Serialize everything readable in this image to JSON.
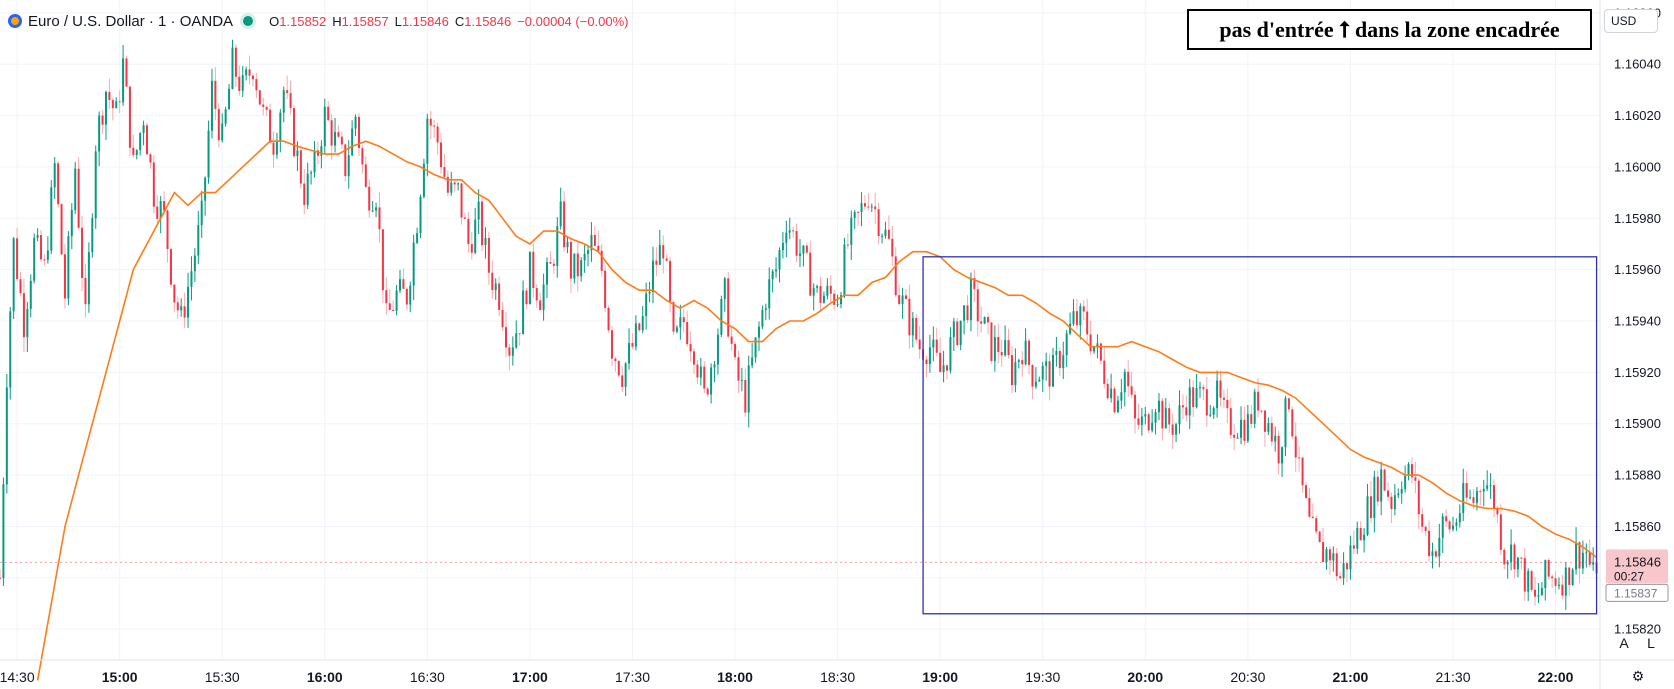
{
  "header": {
    "symbol": "Euro / U.S. Dollar · 1 · OANDA",
    "o_label": "O",
    "o_value": "1.15852",
    "h_label": "H",
    "h_value": "1.15857",
    "l_label": "L",
    "l_value": "1.15846",
    "c_label": "C",
    "c_value": "1.15846",
    "change": "−0.00004 (−0.00%)"
  },
  "annotation": {
    "text": "pas d'entrée ⭡ dans la zone encadrée"
  },
  "currency_button": {
    "label": "USD"
  },
  "price_badge": {
    "price": "1.15846",
    "countdown": "00:27"
  },
  "extra_badge": {
    "price": "1.15837"
  },
  "scale_buttons": {
    "auto": "A",
    "log": "L"
  },
  "icons": {
    "settings": "gear-icon",
    "symbol_logo": "currency-flag-icon",
    "market_status": "market-open-dot-icon"
  },
  "colors": {
    "up": "#089981",
    "down": "#f23645",
    "ma": "#ff7b18",
    "box": "#2b30b5",
    "wick_down": "#f7a9ae",
    "grid": "#f0f3fa"
  },
  "chart_data": {
    "type": "candlestick",
    "symbol": "EURUSD",
    "interval": "1 minute",
    "x_ticks": [
      "14:30",
      "15:00",
      "15:30",
      "16:00",
      "16:30",
      "17:00",
      "17:30",
      "18:00",
      "18:30",
      "19:00",
      "19:30",
      "20:00",
      "20:30",
      "21:00",
      "21:30",
      "22:00"
    ],
    "x_tick_bold": [
      false,
      true,
      false,
      true,
      false,
      true,
      false,
      true,
      false,
      true,
      false,
      true,
      false,
      true,
      false,
      true
    ],
    "y_ticks": [
      "1.16060",
      "1.16040",
      "1.16020",
      "1.16000",
      "1.15980",
      "1.15960",
      "1.15940",
      "1.15920",
      "1.15900",
      "1.15880",
      "1.15860",
      "1.15840",
      "1.15820"
    ],
    "ylim": [
      1.15808,
      1.16065
    ],
    "time_range": [
      "14:25",
      "22:13"
    ],
    "grid": true,
    "price_path": [
      [
        "14:25",
        1.1584
      ],
      [
        "14:27",
        1.1592
      ],
      [
        "14:29",
        1.1597
      ],
      [
        "14:32",
        1.1594
      ],
      [
        "14:35",
        1.1597
      ],
      [
        "14:38",
        1.1596
      ],
      [
        "14:41",
        1.16
      ],
      [
        "14:44",
        1.1595
      ],
      [
        "14:47",
        1.16
      ],
      [
        "14:50",
        1.1594
      ],
      [
        "14:53",
        1.1601
      ],
      [
        "14:56",
        1.1603
      ],
      [
        "14:59",
        1.1602
      ],
      [
        "15:01",
        1.1604
      ],
      [
        "15:04",
        1.16
      ],
      [
        "15:07",
        1.1602
      ],
      [
        "15:10",
        1.1599
      ],
      [
        "15:13",
        1.1598
      ],
      [
        "15:16",
        1.1595
      ],
      [
        "15:18",
        1.1594
      ],
      [
        "15:21",
        1.1596
      ],
      [
        "15:24",
        1.1598
      ],
      [
        "15:27",
        1.1603
      ],
      [
        "15:30",
        1.1601
      ],
      [
        "15:33",
        1.1604
      ],
      [
        "15:36",
        1.1603
      ],
      [
        "15:39",
        1.1604
      ],
      [
        "15:42",
        1.1602
      ],
      [
        "15:45",
        1.1601
      ],
      [
        "15:48",
        1.1603
      ],
      [
        "15:51",
        1.1601
      ],
      [
        "15:54",
        1.1599
      ],
      [
        "15:57",
        1.16
      ],
      [
        "16:00",
        1.1602
      ],
      [
        "16:03",
        1.1601
      ],
      [
        "16:06",
        1.16
      ],
      [
        "16:09",
        1.1602
      ],
      [
        "16:12",
        1.1599
      ],
      [
        "16:15",
        1.1599
      ],
      [
        "16:18",
        1.1594
      ],
      [
        "16:21",
        1.1595
      ],
      [
        "16:24",
        1.1595
      ],
      [
        "16:27",
        1.1598
      ],
      [
        "16:30",
        1.1602
      ],
      [
        "16:33",
        1.1601
      ],
      [
        "16:36",
        1.1599
      ],
      [
        "16:39",
        1.1599
      ],
      [
        "16:42",
        1.1597
      ],
      [
        "16:45",
        1.1598
      ],
      [
        "16:48",
        1.1596
      ],
      [
        "16:51",
        1.1595
      ],
      [
        "16:54",
        1.1593
      ],
      [
        "16:57",
        1.1594
      ],
      [
        "17:00",
        1.1596
      ],
      [
        "17:03",
        1.1595
      ],
      [
        "17:06",
        1.1596
      ],
      [
        "17:09",
        1.1598
      ],
      [
        "17:12",
        1.1596
      ],
      [
        "17:15",
        1.1596
      ],
      [
        "17:18",
        1.1597
      ],
      [
        "17:21",
        1.1596
      ],
      [
        "17:24",
        1.1593
      ],
      [
        "17:27",
        1.1592
      ],
      [
        "17:30",
        1.1593
      ],
      [
        "17:33",
        1.1594
      ],
      [
        "17:36",
        1.1596
      ],
      [
        "17:39",
        1.1597
      ],
      [
        "17:42",
        1.1593
      ],
      [
        "17:45",
        1.1594
      ],
      [
        "17:48",
        1.1593
      ],
      [
        "17:51",
        1.1591
      ],
      [
        "17:54",
        1.1593
      ],
      [
        "17:57",
        1.1595
      ],
      [
        "18:00",
        1.1592
      ],
      [
        "18:03",
        1.1591
      ],
      [
        "18:06",
        1.1593
      ],
      [
        "18:09",
        1.1595
      ],
      [
        "18:12",
        1.1596
      ],
      [
        "18:15",
        1.1598
      ],
      [
        "18:18",
        1.1597
      ],
      [
        "18:21",
        1.1596
      ],
      [
        "18:24",
        1.1595
      ],
      [
        "18:27",
        1.1595
      ],
      [
        "18:30",
        1.1595
      ],
      [
        "18:33",
        1.1597
      ],
      [
        "18:36",
        1.1598
      ],
      [
        "18:39",
        1.1599
      ],
      [
        "18:42",
        1.1598
      ],
      [
        "18:45",
        1.1597
      ],
      [
        "18:48",
        1.1595
      ],
      [
        "18:51",
        1.1594
      ],
      [
        "18:54",
        1.1593
      ],
      [
        "18:57",
        1.1593
      ],
      [
        "19:00",
        1.1592
      ],
      [
        "19:03",
        1.1593
      ],
      [
        "19:06",
        1.1594
      ],
      [
        "19:09",
        1.1595
      ],
      [
        "19:12",
        1.1594
      ],
      [
        "19:15",
        1.1593
      ],
      [
        "19:18",
        1.1593
      ],
      [
        "19:21",
        1.1592
      ],
      [
        "19:24",
        1.1593
      ],
      [
        "19:27",
        1.1592
      ],
      [
        "19:30",
        1.1592
      ],
      [
        "19:33",
        1.1592
      ],
      [
        "19:36",
        1.1593
      ],
      [
        "19:39",
        1.1594
      ],
      [
        "19:42",
        1.1594
      ],
      [
        "19:45",
        1.1593
      ],
      [
        "19:48",
        1.1592
      ],
      [
        "19:51",
        1.1591
      ],
      [
        "19:54",
        1.1592
      ],
      [
        "19:57",
        1.159
      ],
      [
        "20:00",
        1.159
      ],
      [
        "20:03",
        1.1591
      ],
      [
        "20:06",
        1.159
      ],
      [
        "20:09",
        1.159
      ],
      [
        "20:12",
        1.1591
      ],
      [
        "20:15",
        1.1591
      ],
      [
        "20:18",
        1.1591
      ],
      [
        "20:21",
        1.1591
      ],
      [
        "20:24",
        1.159
      ],
      [
        "20:27",
        1.159
      ],
      [
        "20:30",
        1.159
      ],
      [
        "20:33",
        1.1591
      ],
      [
        "20:36",
        1.159
      ],
      [
        "20:39",
        1.1589
      ],
      [
        "20:42",
        1.1591
      ],
      [
        "20:45",
        1.1588
      ],
      [
        "20:48",
        1.1586
      ],
      [
        "20:51",
        1.1585
      ],
      [
        "20:54",
        1.1585
      ],
      [
        "20:57",
        1.1584
      ],
      [
        "21:00",
        1.1585
      ],
      [
        "21:03",
        1.1586
      ],
      [
        "21:06",
        1.1587
      ],
      [
        "21:09",
        1.1588
      ],
      [
        "21:12",
        1.1587
      ],
      [
        "21:15",
        1.1588
      ],
      [
        "21:18",
        1.1588
      ],
      [
        "21:21",
        1.1586
      ],
      [
        "21:24",
        1.1585
      ],
      [
        "21:27",
        1.1586
      ],
      [
        "21:30",
        1.1586
      ],
      [
        "21:33",
        1.1587
      ],
      [
        "21:36",
        1.1587
      ],
      [
        "21:39",
        1.1588
      ],
      [
        "21:42",
        1.1587
      ],
      [
        "21:45",
        1.1585
      ],
      [
        "21:48",
        1.1585
      ],
      [
        "21:51",
        1.1584
      ],
      [
        "21:54",
        1.1583
      ],
      [
        "21:57",
        1.1584
      ],
      [
        "22:00",
        1.1584
      ],
      [
        "22:03",
        1.1584
      ],
      [
        "22:06",
        1.1585
      ],
      [
        "22:09",
        1.1585
      ],
      [
        "22:11",
        1.1584
      ],
      [
        "22:12",
        1.15846
      ]
    ],
    "moving_average": [
      [
        "14:36",
        1.158
      ],
      [
        "14:40",
        1.1583
      ],
      [
        "14:44",
        1.1586
      ],
      [
        "14:48",
        1.1588
      ],
      [
        "14:52",
        1.159
      ],
      [
        "14:56",
        1.1592
      ],
      [
        "15:00",
        1.1594
      ],
      [
        "15:04",
        1.1596
      ],
      [
        "15:08",
        1.1597
      ],
      [
        "15:12",
        1.1598
      ],
      [
        "15:16",
        1.1599
      ],
      [
        "15:20",
        1.15985
      ],
      [
        "15:24",
        1.1599
      ],
      [
        "15:28",
        1.1599
      ],
      [
        "15:32",
        1.15995
      ],
      [
        "15:36",
        1.16
      ],
      [
        "15:40",
        1.16005
      ],
      [
        "15:44",
        1.1601
      ],
      [
        "15:48",
        1.1601
      ],
      [
        "15:52",
        1.16008
      ],
      [
        "16:00",
        1.16005
      ],
      [
        "16:04",
        1.16005
      ],
      [
        "16:08",
        1.16008
      ],
      [
        "16:12",
        1.1601
      ],
      [
        "16:16",
        1.16008
      ],
      [
        "16:20",
        1.16005
      ],
      [
        "16:24",
        1.16002
      ],
      [
        "16:28",
        1.16
      ],
      [
        "16:32",
        1.15997
      ],
      [
        "16:36",
        1.15995
      ],
      [
        "16:40",
        1.15995
      ],
      [
        "16:44",
        1.1599
      ],
      [
        "16:48",
        1.15987
      ],
      [
        "16:52",
        1.1598
      ],
      [
        "16:56",
        1.15973
      ],
      [
        "17:00",
        1.1597
      ],
      [
        "17:04",
        1.15975
      ],
      [
        "17:08",
        1.15975
      ],
      [
        "17:12",
        1.15972
      ],
      [
        "17:16",
        1.1597
      ],
      [
        "17:20",
        1.15967
      ],
      [
        "17:24",
        1.1596
      ],
      [
        "17:28",
        1.15955
      ],
      [
        "17:32",
        1.15952
      ],
      [
        "17:36",
        1.15952
      ],
      [
        "17:40",
        1.15948
      ],
      [
        "17:44",
        1.15945
      ],
      [
        "17:48",
        1.15948
      ],
      [
        "17:52",
        1.15945
      ],
      [
        "17:56",
        1.1594
      ],
      [
        "18:00",
        1.15937
      ],
      [
        "18:04",
        1.15932
      ],
      [
        "18:08",
        1.15932
      ],
      [
        "18:12",
        1.15937
      ],
      [
        "18:16",
        1.1594
      ],
      [
        "18:20",
        1.1594
      ],
      [
        "18:24",
        1.15943
      ],
      [
        "18:28",
        1.15947
      ],
      [
        "18:32",
        1.1595
      ],
      [
        "18:36",
        1.1595
      ],
      [
        "18:40",
        1.15955
      ],
      [
        "18:44",
        1.15957
      ],
      [
        "18:48",
        1.15963
      ],
      [
        "18:52",
        1.15967
      ],
      [
        "18:56",
        1.15967
      ],
      [
        "19:00",
        1.15965
      ],
      [
        "19:04",
        1.1596
      ],
      [
        "19:08",
        1.15957
      ],
      [
        "19:12",
        1.15955
      ],
      [
        "19:16",
        1.15953
      ],
      [
        "19:20",
        1.1595
      ],
      [
        "19:24",
        1.1595
      ],
      [
        "19:28",
        1.15947
      ],
      [
        "19:32",
        1.15943
      ],
      [
        "19:36",
        1.1594
      ],
      [
        "19:40",
        1.15935
      ],
      [
        "19:44",
        1.1593
      ],
      [
        "19:48",
        1.1593
      ],
      [
        "19:52",
        1.1593
      ],
      [
        "19:56",
        1.15932
      ],
      [
        "20:00",
        1.1593
      ],
      [
        "20:04",
        1.15928
      ],
      [
        "20:08",
        1.15925
      ],
      [
        "20:12",
        1.15922
      ],
      [
        "20:16",
        1.1592
      ],
      [
        "20:20",
        1.1592
      ],
      [
        "20:24",
        1.1592
      ],
      [
        "20:28",
        1.15918
      ],
      [
        "20:32",
        1.15916
      ],
      [
        "20:36",
        1.15915
      ],
      [
        "20:40",
        1.15913
      ],
      [
        "20:44",
        1.1591
      ],
      [
        "20:48",
        1.15905
      ],
      [
        "20:52",
        1.159
      ],
      [
        "20:56",
        1.15895
      ],
      [
        "21:00",
        1.1589
      ],
      [
        "21:04",
        1.15887
      ],
      [
        "21:08",
        1.15885
      ],
      [
        "21:12",
        1.15883
      ],
      [
        "21:16",
        1.1588
      ],
      [
        "21:20",
        1.1588
      ],
      [
        "21:24",
        1.15877
      ],
      [
        "21:28",
        1.15873
      ],
      [
        "21:32",
        1.1587
      ],
      [
        "21:36",
        1.15868
      ],
      [
        "21:40",
        1.15867
      ],
      [
        "21:44",
        1.15867
      ],
      [
        "21:48",
        1.15866
      ],
      [
        "21:52",
        1.15864
      ],
      [
        "21:56",
        1.1586
      ],
      [
        "22:00",
        1.15857
      ],
      [
        "22:04",
        1.15855
      ],
      [
        "22:08",
        1.15852
      ],
      [
        "22:12",
        1.15848
      ]
    ],
    "box": {
      "start": "18:55",
      "end": "22:12",
      "top": 1.15965,
      "bottom": 1.15826
    },
    "last_price": 1.15846
  }
}
